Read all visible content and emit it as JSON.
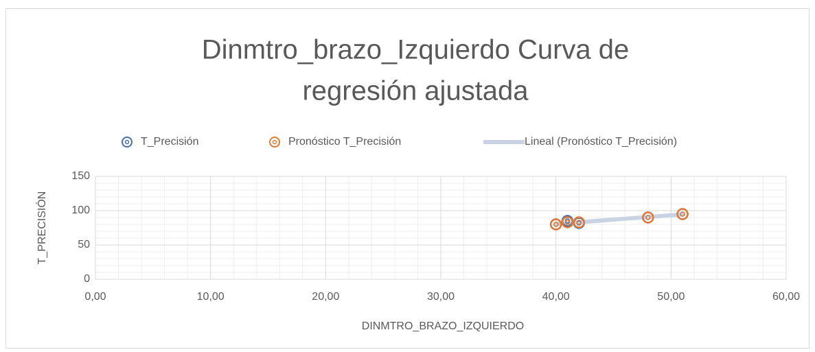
{
  "chart_data": {
    "type": "scatter",
    "title": [
      "Dinmtro_brazo_Izquierdo Curva de",
      "regresión ajustada"
    ],
    "x_label": "DINMTRO_BRAZO_IZQUIERDO",
    "y_label": "T_PRECISIÓN",
    "series": [
      {
        "name": "T_Precisión",
        "color": "#4a6fa5",
        "x": [
          40,
          41,
          42,
          48,
          51
        ],
        "values": [
          80,
          85,
          82,
          90,
          95
        ]
      },
      {
        "name": "Pronóstico T_Precisión",
        "color": "#e07b39",
        "x": [
          40,
          41,
          42,
          48,
          51
        ],
        "values": [
          80,
          83,
          83,
          90,
          95
        ]
      }
    ],
    "trendline": {
      "name": "Lineal (Pronóstico T_Precisión)",
      "color": "#c9d3e3",
      "series": 1
    },
    "xlim": [
      0,
      60
    ],
    "xticks": [
      {
        "value": 0,
        "label": "0,00"
      },
      {
        "value": 10,
        "label": "10,00"
      },
      {
        "value": 20,
        "label": "20,00"
      },
      {
        "value": 30,
        "label": "30,00"
      },
      {
        "value": 40,
        "label": "40,00"
      },
      {
        "value": 50,
        "label": "50,00"
      },
      {
        "value": 60,
        "label": "60,00"
      }
    ],
    "ylim": [
      0,
      150
    ],
    "yticks": [
      0,
      50,
      100,
      150
    ],
    "grid": true,
    "minor_grid": true,
    "legend": "top"
  }
}
